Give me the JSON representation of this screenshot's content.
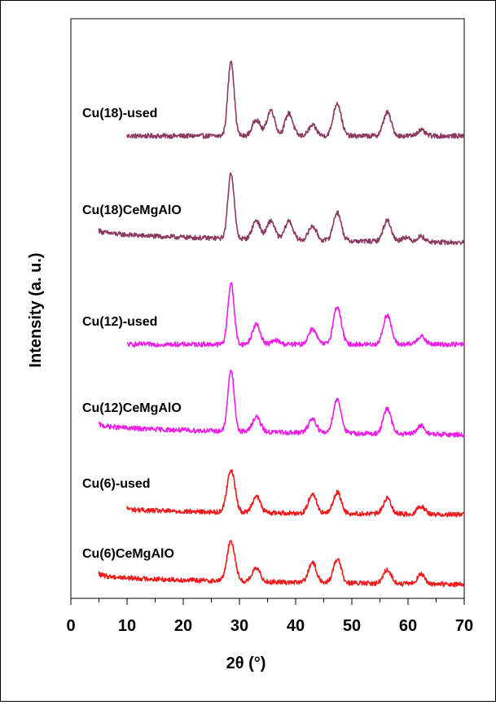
{
  "chart_data": {
    "type": "line",
    "title": "",
    "xlabel": "2θ (°)",
    "ylabel": "Intensity (a. u.)",
    "xlim": [
      0,
      70
    ],
    "x_ticks": [
      0,
      10,
      20,
      30,
      40,
      50,
      60,
      70
    ],
    "x_tick_labels": [
      "0",
      "10",
      "20",
      "30",
      "40",
      "50",
      "60",
      "70"
    ],
    "y_ticks_shown": false,
    "grid": false,
    "legend": "none",
    "series_colors": {
      "Cu(18)": "#8b3a62",
      "Cu(12)": "#ee1ee8",
      "Cu(6)": "#ee1c1c"
    },
    "series": [
      {
        "name": "Cu(18)-used",
        "color": "#8b3a62",
        "x_start": 10,
        "x_end": 70,
        "baseline_start": 0.86,
        "baseline_end": 0.86,
        "peaks": [
          [
            28.5,
            1.6
          ],
          [
            33.0,
            0.35
          ],
          [
            35.6,
            0.55
          ],
          [
            38.8,
            0.48
          ],
          [
            43.0,
            0.22
          ],
          [
            47.4,
            0.7
          ],
          [
            56.3,
            0.5
          ],
          [
            62.3,
            0.12
          ]
        ]
      },
      {
        "name": "Cu(18)CeMgAlO",
        "color": "#8b3a62",
        "x_start": 5,
        "x_end": 70,
        "baseline_start": 1.1,
        "baseline_end": 0.82,
        "peaks": [
          [
            28.5,
            1.4
          ],
          [
            33.0,
            0.4
          ],
          [
            35.6,
            0.4
          ],
          [
            38.8,
            0.4
          ],
          [
            43.0,
            0.3
          ],
          [
            47.4,
            0.6
          ],
          [
            56.3,
            0.45
          ],
          [
            59.5,
            0.1
          ],
          [
            62.3,
            0.12
          ]
        ]
      },
      {
        "name": "Cu(12)-used",
        "color": "#ee1ee8",
        "x_start": 10,
        "x_end": 70,
        "baseline_start": 0.86,
        "baseline_end": 0.86,
        "peaks": [
          [
            28.5,
            1.3
          ],
          [
            33.0,
            0.42
          ],
          [
            36.5,
            0.08
          ],
          [
            43.0,
            0.33
          ],
          [
            47.4,
            0.8
          ],
          [
            56.3,
            0.63
          ],
          [
            62.3,
            0.17
          ]
        ]
      },
      {
        "name": "Cu(12)CeMgAlO",
        "color": "#ee1ee8",
        "x_start": 5,
        "x_end": 70,
        "baseline_start": 1.1,
        "baseline_end": 0.86,
        "peaks": [
          [
            28.5,
            1.3
          ],
          [
            33.0,
            0.32
          ],
          [
            43.0,
            0.3
          ],
          [
            47.4,
            0.72
          ],
          [
            56.3,
            0.53
          ],
          [
            62.3,
            0.18
          ]
        ]
      },
      {
        "name": "Cu(6)-used",
        "color": "#ee1c1c",
        "x_start": 10,
        "x_end": 70,
        "baseline_start": 1.0,
        "baseline_end": 0.86,
        "peaks": [
          [
            28.5,
            0.9
          ],
          [
            33.0,
            0.35
          ],
          [
            43.0,
            0.42
          ],
          [
            47.4,
            0.45
          ],
          [
            56.3,
            0.33
          ],
          [
            62.3,
            0.17
          ]
        ]
      },
      {
        "name": "Cu(6)CeMgAlO",
        "color": "#ee1c1c",
        "x_start": 5,
        "x_end": 70,
        "baseline_start": 1.1,
        "baseline_end": 0.86,
        "peaks": [
          [
            28.5,
            0.85
          ],
          [
            33.0,
            0.28
          ],
          [
            43.0,
            0.42
          ],
          [
            47.4,
            0.5
          ],
          [
            56.3,
            0.3
          ],
          [
            62.3,
            0.2
          ]
        ]
      }
    ]
  }
}
